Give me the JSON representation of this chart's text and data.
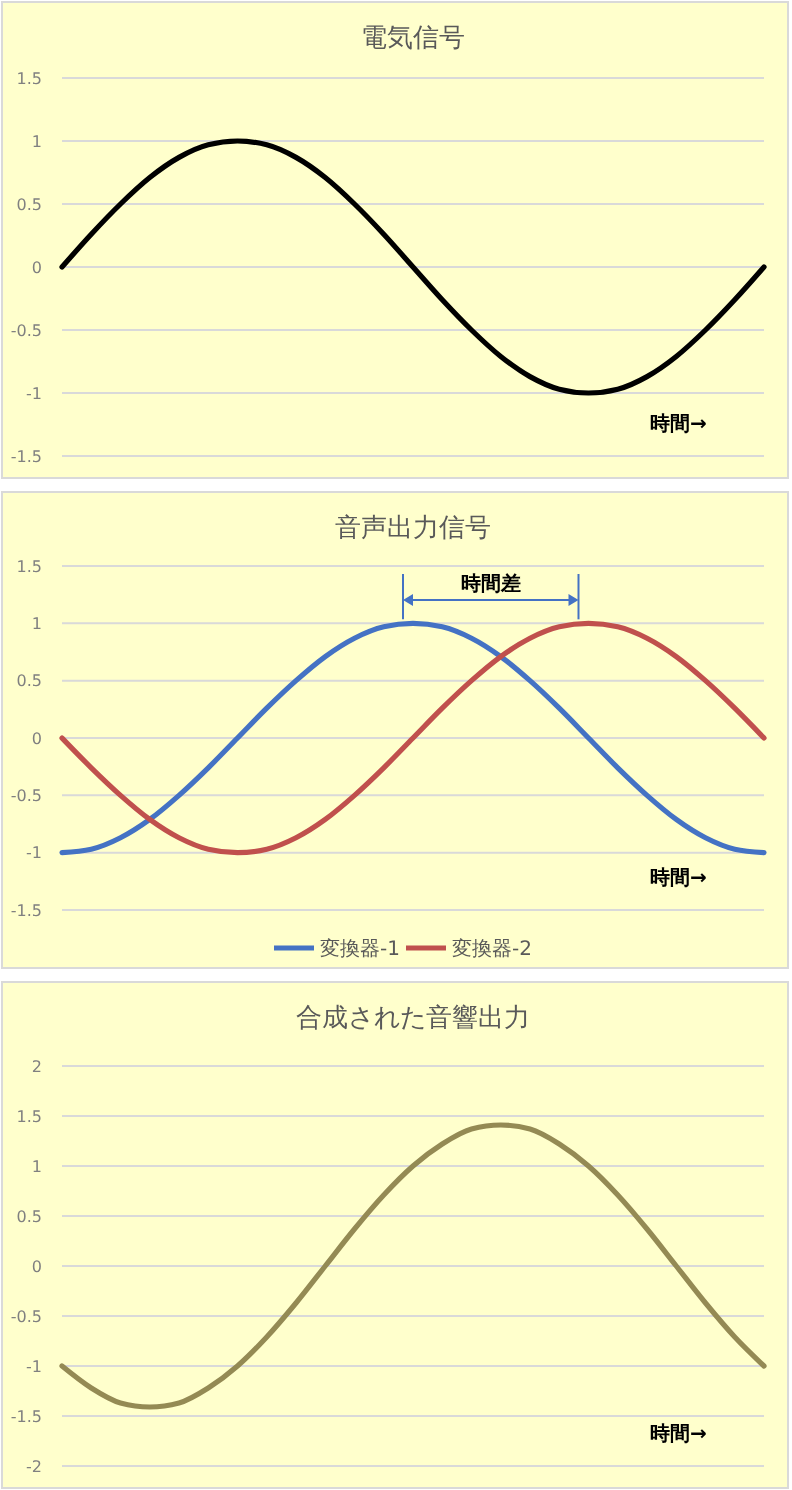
{
  "chart_data": [
    {
      "type": "line",
      "title": "電気信号",
      "categories": [
        null,
        null,
        null,
        null,
        null,
        null,
        null,
        null,
        null,
        null,
        null,
        null,
        null,
        null,
        null,
        null,
        null,
        null,
        null,
        null,
        null,
        null,
        null,
        null,
        null
      ],
      "series": [
        {
          "color": "#000000",
          "values": [
            0,
            0.26,
            0.5,
            0.71,
            0.87,
            0.97,
            1,
            0.97,
            0.87,
            0.71,
            0.5,
            0.26,
            0,
            -0.26,
            -0.5,
            -0.71,
            -0.87,
            -0.97,
            -1,
            -0.97,
            -0.87,
            -0.71,
            -0.5,
            -0.26,
            0
          ]
        }
      ],
      "ylim": [
        -1.5,
        1.5
      ],
      "yticks": [
        -1.5,
        -1,
        -0.5,
        0,
        0.5,
        1,
        1.5
      ],
      "grid": "y",
      "marker": "none",
      "annotations": [
        "時間→"
      ]
    },
    {
      "type": "line",
      "title": "音声出力信号",
      "categories": [
        null,
        null,
        null,
        null,
        null,
        null,
        null,
        null,
        null,
        null,
        null,
        null,
        null,
        null,
        null,
        null,
        null,
        null,
        null,
        null,
        null,
        null,
        null,
        null,
        null
      ],
      "series": [
        {
          "name": "変換器-1",
          "color": "#4472c4",
          "values": [
            -1,
            -0.97,
            -0.87,
            -0.71,
            -0.5,
            -0.26,
            0,
            0.26,
            0.5,
            0.71,
            0.87,
            0.97,
            1,
            0.97,
            0.87,
            0.71,
            0.5,
            0.26,
            0,
            -0.26,
            -0.5,
            -0.71,
            -0.87,
            -0.97,
            -1
          ]
        },
        {
          "name": "変換器-2",
          "color": "#c0504d",
          "values": [
            0,
            -0.26,
            -0.5,
            -0.71,
            -0.87,
            -0.97,
            -1,
            -0.97,
            -0.87,
            -0.71,
            -0.5,
            -0.26,
            0,
            0.26,
            0.5,
            0.71,
            0.87,
            0.97,
            1,
            0.97,
            0.87,
            0.71,
            0.5,
            0.26,
            0
          ]
        }
      ],
      "ylim": [
        -1.5,
        1.5
      ],
      "yticks": [
        -1.5,
        -1,
        -0.5,
        0,
        0.5,
        1,
        1.5
      ],
      "grid": "y",
      "marker": "none",
      "legend": "bottom",
      "annotations": [
        "時間→",
        "時間差"
      ]
    },
    {
      "type": "line",
      "title": "合成された音響出力",
      "categories": [
        null,
        null,
        null,
        null,
        null,
        null,
        null,
        null,
        null,
        null,
        null,
        null,
        null,
        null,
        null,
        null,
        null,
        null,
        null,
        null,
        null,
        null,
        null,
        null,
        null
      ],
      "series": [
        {
          "color": "#948a54",
          "values": [
            -1,
            -1.22,
            -1.37,
            -1.41,
            -1.37,
            -1.22,
            -1,
            -0.71,
            -0.37,
            0,
            0.37,
            0.71,
            1,
            1.22,
            1.37,
            1.41,
            1.37,
            1.22,
            1,
            0.71,
            0.37,
            0,
            -0.37,
            -0.71,
            -1
          ]
        }
      ],
      "ylim": [
        -2,
        2
      ],
      "yticks": [
        -2,
        -1.5,
        -1,
        -0.5,
        0,
        0.5,
        1,
        1.5,
        2
      ],
      "grid": "y",
      "marker": "none",
      "annotations": [
        "時間→"
      ]
    }
  ]
}
